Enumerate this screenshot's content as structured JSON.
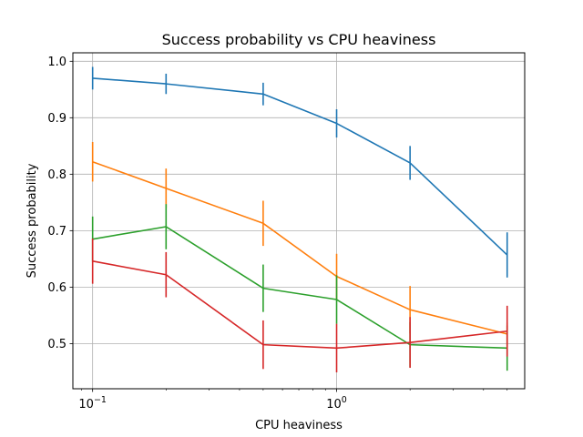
{
  "chart_data": {
    "type": "line",
    "title": "Success probability vs CPU heaviness",
    "xlabel": "CPU heaviness",
    "ylabel": "Success probability",
    "xscale": "log",
    "xlim": [
      0.083,
      5.9
    ],
    "ylim": [
      0.42,
      1.015
    ],
    "grid": true,
    "x": [
      0.1,
      0.2,
      0.5,
      1.0,
      2.0,
      5.0
    ],
    "x_ticks": [
      {
        "value": 0.1,
        "base": "10",
        "exp": "−1"
      },
      {
        "value": 1.0,
        "base": "10",
        "exp": "0"
      }
    ],
    "y_ticks": [
      {
        "value": 0.5,
        "label": "0.5"
      },
      {
        "value": 0.6,
        "label": "0.6"
      },
      {
        "value": 0.7,
        "label": "0.7"
      },
      {
        "value": 0.8,
        "label": "0.8"
      },
      {
        "value": 0.9,
        "label": "0.9"
      },
      {
        "value": 1.0,
        "label": "1.0"
      }
    ],
    "series": [
      {
        "color": "#1f77b4",
        "values": [
          0.97,
          0.96,
          0.942,
          0.89,
          0.82,
          0.657
        ],
        "errors": [
          0.02,
          0.018,
          0.02,
          0.025,
          0.03,
          0.04
        ]
      },
      {
        "color": "#ff7f0e",
        "values": [
          0.822,
          0.775,
          0.713,
          0.619,
          0.56,
          0.517
        ],
        "errors": [
          0.035,
          0.035,
          0.04,
          0.04,
          0.042,
          0.02
        ]
      },
      {
        "color": "#2ca02c",
        "values": [
          0.685,
          0.707,
          0.598,
          0.578,
          0.498,
          0.492
        ],
        "errors": [
          0.04,
          0.04,
          0.042,
          0.043,
          0.04,
          0.04
        ]
      },
      {
        "color": "#d62728",
        "values": [
          0.646,
          0.622,
          0.498,
          0.492,
          0.502,
          0.522
        ],
        "errors": [
          0.04,
          0.04,
          0.043,
          0.043,
          0.045,
          0.045
        ]
      }
    ]
  }
}
